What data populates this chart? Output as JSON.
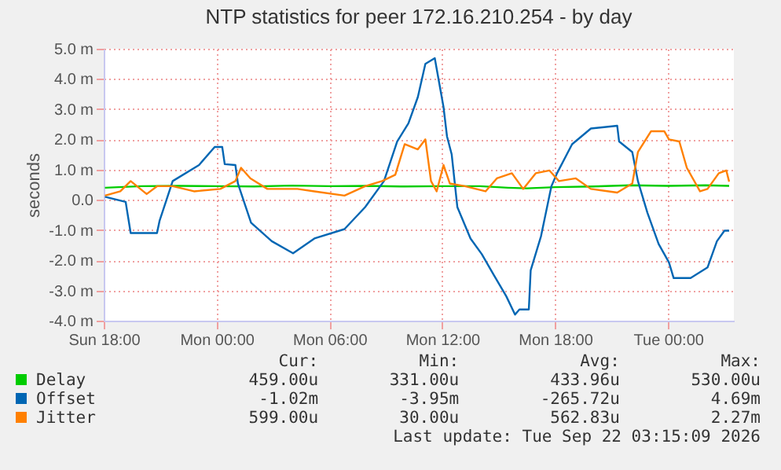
{
  "chart_data": {
    "type": "line",
    "title": "NTP statistics for peer 172.16.210.254 - by day",
    "ylabel": "seconds",
    "xlim": [
      "2026-09-20T18:00",
      "2026-09-22T03:30"
    ],
    "xticks": [
      {
        "value": "2026-09-20T18:00",
        "label": "Sun 18:00"
      },
      {
        "value": "2026-09-21T00:00",
        "label": "Mon 00:00"
      },
      {
        "value": "2026-09-21T06:00",
        "label": "Mon 06:00"
      },
      {
        "value": "2026-09-21T12:00",
        "label": "Mon 12:00"
      },
      {
        "value": "2026-09-21T18:00",
        "label": "Mon 18:00"
      },
      {
        "value": "2026-09-22T00:00",
        "label": "Tue 00:00"
      }
    ],
    "ylim": [
      -4,
      5
    ],
    "yticks": [
      {
        "value": -4,
        "label": "-4.0 m"
      },
      {
        "value": -3,
        "label": "-3.0 m"
      },
      {
        "value": -2,
        "label": "-2.0 m"
      },
      {
        "value": -1,
        "label": "-1.0 m"
      },
      {
        "value": 0,
        "label": "0.0"
      },
      {
        "value": 1,
        "label": "1.0 m"
      },
      {
        "value": 2,
        "label": "2.0 m"
      },
      {
        "value": 3,
        "label": "3.0 m"
      },
      {
        "value": 4,
        "label": "4.0 m"
      },
      {
        "value": 5,
        "label": "5.0 m"
      }
    ],
    "grid": true,
    "legend": "bottom",
    "marker": "none",
    "line_style": "solid",
    "series": [
      {
        "name": "Delay",
        "color": "#00cc00",
        "x": [
          "2026-09-20T18:04",
          "2026-09-20T20:00",
          "2026-09-20T22:00",
          "2026-09-21T00:00",
          "2026-09-21T02:00",
          "2026-09-21T04:00",
          "2026-09-21T06:00",
          "2026-09-21T08:00",
          "2026-09-21T10:00",
          "2026-09-21T12:00",
          "2026-09-21T14:00",
          "2026-09-21T15:30",
          "2026-09-21T16:30",
          "2026-09-21T18:00",
          "2026-09-21T20:00",
          "2026-09-21T22:00",
          "2026-09-22T00:00",
          "2026-09-22T02:00",
          "2026-09-22T03:15"
        ],
        "values": [
          0.4,
          0.45,
          0.46,
          0.45,
          0.44,
          0.47,
          0.45,
          0.46,
          0.44,
          0.45,
          0.45,
          0.4,
          0.38,
          0.42,
          0.44,
          0.48,
          0.46,
          0.48,
          0.46
        ]
      },
      {
        "name": "Offset",
        "color": "#0066b3",
        "x": [
          "2026-09-20T18:04",
          "2026-09-20T19:10",
          "2026-09-20T19:26",
          "2026-09-20T20:50",
          "2026-09-20T20:58",
          "2026-09-20T21:40",
          "2026-09-20T23:04",
          "2026-09-20T23:54",
          "2026-09-21T00:18",
          "2026-09-21T00:26",
          "2026-09-21T01:00",
          "2026-09-21T01:08",
          "2026-09-21T01:50",
          "2026-09-21T02:56",
          "2026-09-21T04:04",
          "2026-09-21T05:12",
          "2026-09-21T06:48",
          "2026-09-21T07:54",
          "2026-09-21T08:54",
          "2026-09-21T09:36",
          "2026-09-21T10:12",
          "2026-09-21T10:42",
          "2026-09-21T11:06",
          "2026-09-21T11:36",
          "2026-09-21T12:04",
          "2026-09-21T12:15",
          "2026-09-21T12:30",
          "2026-09-21T12:48",
          "2026-09-21T13:30",
          "2026-09-21T14:06",
          "2026-09-21T14:45",
          "2026-09-21T15:24",
          "2026-09-21T15:52",
          "2026-09-21T16:06",
          "2026-09-21T16:36",
          "2026-09-21T16:42",
          "2026-09-21T17:15",
          "2026-09-21T17:48",
          "2026-09-21T18:06",
          "2026-09-21T18:54",
          "2026-09-21T19:54",
          "2026-09-21T21:18",
          "2026-09-21T21:24",
          "2026-09-21T22:06",
          "2026-09-21T22:24",
          "2026-09-21T22:54",
          "2026-09-21T23:30",
          "2026-09-22T00:03",
          "2026-09-22T00:18",
          "2026-09-22T01:12",
          "2026-09-22T02:06",
          "2026-09-22T02:36",
          "2026-09-22T03:00",
          "2026-09-22T03:15"
        ],
        "values": [
          0.1,
          -0.07,
          -1.1,
          -1.1,
          -0.7,
          0.62,
          1.15,
          1.75,
          1.75,
          1.18,
          1.15,
          0.54,
          -0.76,
          -1.37,
          -1.77,
          -1.28,
          -0.97,
          -0.24,
          0.62,
          1.93,
          2.53,
          3.4,
          4.5,
          4.69,
          3.06,
          2.1,
          1.5,
          -0.24,
          -1.28,
          -1.8,
          -2.5,
          -3.19,
          -3.8,
          -3.63,
          -3.63,
          -2.33,
          -1.2,
          0.45,
          0.88,
          1.84,
          2.36,
          2.45,
          1.93,
          1.58,
          0.62,
          -0.42,
          -1.46,
          -2.07,
          -2.59,
          -2.59,
          -2.24,
          -1.37,
          -1.02,
          -1.02
        ]
      },
      {
        "name": "Jitter",
        "color": "#ff8000",
        "x": [
          "2026-09-20T18:04",
          "2026-09-20T18:53",
          "2026-09-20T19:26",
          "2026-09-20T20:17",
          "2026-09-20T20:50",
          "2026-09-20T21:40",
          "2026-09-20T22:48",
          "2026-09-21T00:12",
          "2026-09-21T01:00",
          "2026-09-21T01:18",
          "2026-09-21T01:48",
          "2026-09-21T02:42",
          "2026-09-21T04:18",
          "2026-09-21T05:12",
          "2026-09-21T06:48",
          "2026-09-21T07:54",
          "2026-09-21T08:48",
          "2026-09-21T09:30",
          "2026-09-21T10:00",
          "2026-09-21T10:42",
          "2026-09-21T11:06",
          "2026-09-21T11:24",
          "2026-09-21T11:42",
          "2026-09-21T12:04",
          "2026-09-21T12:24",
          "2026-09-21T13:12",
          "2026-09-21T14:18",
          "2026-09-21T14:54",
          "2026-09-21T15:42",
          "2026-09-21T16:18",
          "2026-09-21T16:58",
          "2026-09-21T17:42",
          "2026-09-21T18:12",
          "2026-09-21T19:06",
          "2026-09-21T19:54",
          "2026-09-21T21:18",
          "2026-09-21T22:06",
          "2026-09-21T22:24",
          "2026-09-21T23:06",
          "2026-09-21T23:48",
          "2026-09-22T00:03",
          "2026-09-22T00:36",
          "2026-09-22T01:00",
          "2026-09-22T01:42",
          "2026-09-22T02:06",
          "2026-09-22T02:42",
          "2026-09-22T03:06",
          "2026-09-22T03:15"
        ],
        "values": [
          0.14,
          0.28,
          0.62,
          0.19,
          0.45,
          0.45,
          0.28,
          0.36,
          0.62,
          1.06,
          0.71,
          0.36,
          0.36,
          0.28,
          0.14,
          0.45,
          0.62,
          0.83,
          1.84,
          1.67,
          2.0,
          0.62,
          0.28,
          1.15,
          0.54,
          0.45,
          0.28,
          0.71,
          0.88,
          0.36,
          0.88,
          0.97,
          0.62,
          0.71,
          0.36,
          0.24,
          0.54,
          1.58,
          2.27,
          2.27,
          2.0,
          1.93,
          1.06,
          0.28,
          0.36,
          0.88,
          0.97,
          0.6
        ]
      }
    ],
    "annotations": [
      "Cur:",
      "Min:",
      "Avg:",
      "Max:",
      "459.00u",
      "331.00u",
      "433.96u",
      "530.00u",
      "-1.02m",
      "-3.95m",
      "-265.72u",
      "4.69m",
      "599.00u",
      "30.00u",
      "562.83u",
      "2.27m",
      "Last update: Tue Sep 22 03:15:09 2026"
    ]
  }
}
